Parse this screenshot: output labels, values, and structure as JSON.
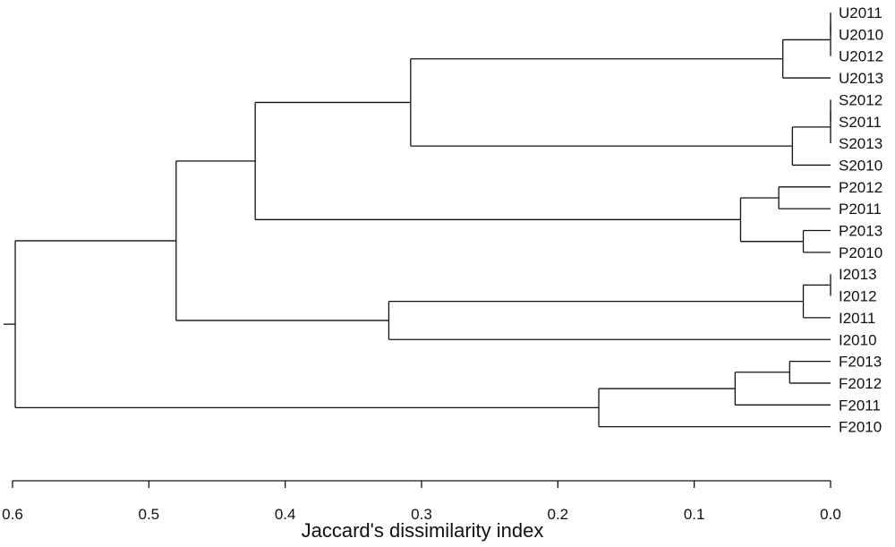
{
  "chart_data": {
    "type": "dendrogram",
    "orientation": "horizontal, root on left, leaves on right",
    "xlabel": "Jaccard's dissimilarity index",
    "xlim": [
      0.6,
      0.0
    ],
    "x_ticks": [
      {
        "value": 0.6,
        "label": "0.6"
      },
      {
        "value": 0.5,
        "label": "0.5"
      },
      {
        "value": 0.4,
        "label": "0.4"
      },
      {
        "value": 0.3,
        "label": "0.3"
      },
      {
        "value": 0.2,
        "label": "0.2"
      },
      {
        "value": 0.1,
        "label": "0.1"
      },
      {
        "value": 0.0,
        "label": "0.0"
      }
    ],
    "leaves": [
      "U2011",
      "U2010",
      "U2012",
      "U2013",
      "S2012",
      "S2011",
      "S2013",
      "S2010",
      "P2012",
      "P2011",
      "P2013",
      "P2010",
      "I2013",
      "I2012",
      "I2011",
      "I2010",
      "F2013",
      "F2012",
      "F2011",
      "F2010"
    ],
    "merges": [
      {
        "id": "m1",
        "children": [
          "U2011",
          "U2010"
        ],
        "height": 0.0
      },
      {
        "id": "m2",
        "children": [
          "m1",
          "U2012"
        ],
        "height": 0.0
      },
      {
        "id": "m3",
        "children": [
          "m2",
          "U2013"
        ],
        "height": 0.035
      },
      {
        "id": "m4",
        "children": [
          "S2012",
          "S2011"
        ],
        "height": 0.0
      },
      {
        "id": "m5",
        "children": [
          "m4",
          "S2013"
        ],
        "height": 0.0
      },
      {
        "id": "m6",
        "children": [
          "m5",
          "S2010"
        ],
        "height": 0.028
      },
      {
        "id": "m7",
        "children": [
          "m3",
          "m6"
        ],
        "height": 0.308
      },
      {
        "id": "m8",
        "children": [
          "P2012",
          "P2011"
        ],
        "height": 0.038
      },
      {
        "id": "m9",
        "children": [
          "P2013",
          "P2010"
        ],
        "height": 0.02
      },
      {
        "id": "m10",
        "children": [
          "m8",
          "m9"
        ],
        "height": 0.066
      },
      {
        "id": "m11",
        "children": [
          "m7",
          "m10"
        ],
        "height": 0.422
      },
      {
        "id": "m12",
        "children": [
          "I2013",
          "I2012"
        ],
        "height": 0.0
      },
      {
        "id": "m13",
        "children": [
          "m12",
          "I2011"
        ],
        "height": 0.02
      },
      {
        "id": "m14",
        "children": [
          "m13",
          "I2010"
        ],
        "height": 0.324
      },
      {
        "id": "m15",
        "children": [
          "m11",
          "m14"
        ],
        "height": 0.48
      },
      {
        "id": "m16",
        "children": [
          "F2013",
          "F2012"
        ],
        "height": 0.03
      },
      {
        "id": "m17",
        "children": [
          "m16",
          "F2011"
        ],
        "height": 0.07
      },
      {
        "id": "m18",
        "children": [
          "m17",
          "F2010"
        ],
        "height": 0.17
      },
      {
        "id": "m19",
        "children": [
          "m15",
          "m18"
        ],
        "height": 0.598
      }
    ]
  }
}
